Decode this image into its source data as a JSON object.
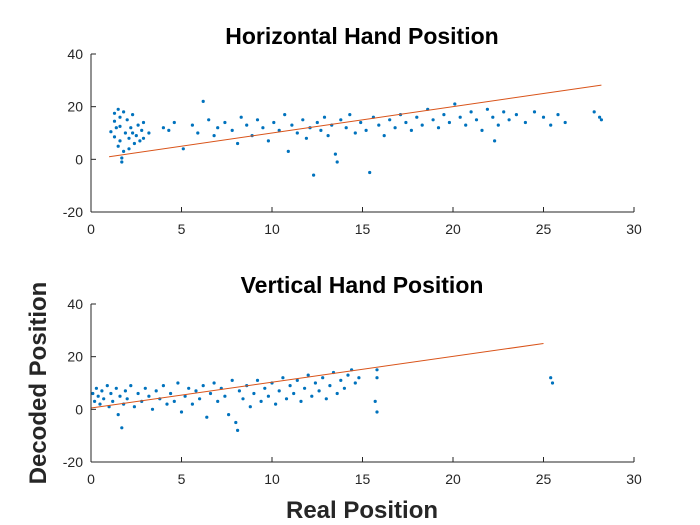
{
  "figure": {
    "xlabel": "Real Position",
    "ylabel": "Decoded Position",
    "colors": {
      "points": "#0072bd",
      "fit": "#d95319",
      "axis": "#262626"
    }
  },
  "chart_data": [
    {
      "type": "scatter",
      "title": "Horizontal Hand Position",
      "xlabel": "",
      "ylabel": "",
      "xlim": [
        0,
        30
      ],
      "ylim": [
        -20,
        40
      ],
      "xticks": [
        0,
        5,
        10,
        15,
        20,
        25,
        30
      ],
      "yticks": [
        -20,
        0,
        20,
        40
      ],
      "grid": false,
      "fit_line": {
        "x": [
          1,
          28.2
        ],
        "y": [
          1,
          28.2
        ]
      },
      "points": [
        [
          1.1,
          10.5
        ],
        [
          1.3,
          14.5
        ],
        [
          1.3,
          17.5
        ],
        [
          1.3,
          8.5
        ],
        [
          1.4,
          12
        ],
        [
          1.5,
          19
        ],
        [
          1.5,
          5
        ],
        [
          1.6,
          16
        ],
        [
          1.6,
          7
        ],
        [
          1.6,
          12.5
        ],
        [
          1.7,
          0.5
        ],
        [
          1.7,
          -1
        ],
        [
          1.8,
          18
        ],
        [
          1.8,
          3
        ],
        [
          1.9,
          10
        ],
        [
          2,
          15
        ],
        [
          2.1,
          8
        ],
        [
          2.1,
          4
        ],
        [
          2.2,
          12
        ],
        [
          2.3,
          17
        ],
        [
          2.3,
          10
        ],
        [
          2.4,
          6
        ],
        [
          2.5,
          9
        ],
        [
          2.6,
          13
        ],
        [
          2.7,
          7
        ],
        [
          2.8,
          11
        ],
        [
          2.9,
          14
        ],
        [
          2.9,
          8
        ],
        [
          3.2,
          10
        ],
        [
          4,
          12
        ],
        [
          4.3,
          11
        ],
        [
          4.6,
          14
        ],
        [
          5.1,
          4
        ],
        [
          5.6,
          13
        ],
        [
          5.9,
          10
        ],
        [
          6.2,
          22
        ],
        [
          6.5,
          15
        ],
        [
          6.8,
          9
        ],
        [
          7,
          12
        ],
        [
          7.4,
          14
        ],
        [
          7.8,
          11
        ],
        [
          8.1,
          6
        ],
        [
          8.3,
          16
        ],
        [
          8.6,
          13
        ],
        [
          8.9,
          9
        ],
        [
          9.2,
          15
        ],
        [
          9.5,
          12
        ],
        [
          9.8,
          7
        ],
        [
          10.1,
          14
        ],
        [
          10.4,
          11
        ],
        [
          10.7,
          17
        ],
        [
          10.9,
          3
        ],
        [
          11.1,
          13
        ],
        [
          11.4,
          10
        ],
        [
          11.7,
          15
        ],
        [
          11.9,
          8
        ],
        [
          12.1,
          12
        ],
        [
          12.3,
          -6
        ],
        [
          12.5,
          14
        ],
        [
          12.7,
          11
        ],
        [
          12.9,
          16
        ],
        [
          13.1,
          9
        ],
        [
          13.3,
          13
        ],
        [
          13.5,
          2
        ],
        [
          13.6,
          -1
        ],
        [
          13.8,
          15
        ],
        [
          14.1,
          12
        ],
        [
          14.3,
          17
        ],
        [
          14.6,
          10
        ],
        [
          14.9,
          14
        ],
        [
          15.2,
          11
        ],
        [
          15.4,
          -5
        ],
        [
          15.6,
          16
        ],
        [
          15.9,
          13
        ],
        [
          16.2,
          9
        ],
        [
          16.5,
          15
        ],
        [
          16.8,
          12
        ],
        [
          17.1,
          17
        ],
        [
          17.4,
          14
        ],
        [
          17.7,
          11
        ],
        [
          18,
          16
        ],
        [
          18.3,
          13
        ],
        [
          18.6,
          19
        ],
        [
          18.9,
          15
        ],
        [
          19.2,
          12
        ],
        [
          19.5,
          17
        ],
        [
          19.8,
          14
        ],
        [
          20.1,
          21
        ],
        [
          20.4,
          16
        ],
        [
          20.7,
          13
        ],
        [
          21,
          18
        ],
        [
          21.3,
          15
        ],
        [
          21.6,
          11
        ],
        [
          21.9,
          19
        ],
        [
          22.2,
          16
        ],
        [
          22.3,
          7
        ],
        [
          22.5,
          13
        ],
        [
          22.8,
          18
        ],
        [
          23.1,
          15
        ],
        [
          23.5,
          17
        ],
        [
          24,
          14
        ],
        [
          24.5,
          18
        ],
        [
          25,
          16
        ],
        [
          25.4,
          13
        ],
        [
          25.8,
          17
        ],
        [
          26.2,
          14
        ],
        [
          27.8,
          18
        ],
        [
          28.1,
          16
        ],
        [
          28.2,
          15
        ]
      ]
    },
    {
      "type": "scatter",
      "title": "Vertical Hand Position",
      "xlabel": "",
      "ylabel": "",
      "xlim": [
        0,
        30
      ],
      "ylim": [
        -20,
        40
      ],
      "xticks": [
        0,
        5,
        10,
        15,
        20,
        25,
        30
      ],
      "yticks": [
        -20,
        0,
        20,
        40
      ],
      "grid": false,
      "fit_line": {
        "x": [
          0,
          25
        ],
        "y": [
          0.5,
          25
        ]
      },
      "points": [
        [
          0.1,
          6
        ],
        [
          0.2,
          3
        ],
        [
          0.3,
          8
        ],
        [
          0.4,
          5
        ],
        [
          0.5,
          2
        ],
        [
          0.6,
          7
        ],
        [
          0.7,
          4
        ],
        [
          0.9,
          9
        ],
        [
          1,
          1
        ],
        [
          1.1,
          6
        ],
        [
          1.2,
          3
        ],
        [
          1.4,
          8
        ],
        [
          1.5,
          -2
        ],
        [
          1.6,
          5
        ],
        [
          1.7,
          -7
        ],
        [
          1.8,
          2
        ],
        [
          1.9,
          7
        ],
        [
          2,
          4
        ],
        [
          2.2,
          9
        ],
        [
          2.4,
          1
        ],
        [
          2.6,
          6
        ],
        [
          2.8,
          3
        ],
        [
          3,
          8
        ],
        [
          3.2,
          5
        ],
        [
          3.4,
          0
        ],
        [
          3.6,
          7
        ],
        [
          3.8,
          4
        ],
        [
          4,
          9
        ],
        [
          4.2,
          2
        ],
        [
          4.4,
          6
        ],
        [
          4.6,
          3
        ],
        [
          4.8,
          10
        ],
        [
          5,
          -1
        ],
        [
          5.2,
          5
        ],
        [
          5.4,
          8
        ],
        [
          5.6,
          2
        ],
        [
          5.8,
          7
        ],
        [
          6,
          4
        ],
        [
          6.2,
          9
        ],
        [
          6.4,
          -3
        ],
        [
          6.6,
          6
        ],
        [
          6.8,
          10
        ],
        [
          7,
          3
        ],
        [
          7.2,
          8
        ],
        [
          7.4,
          5
        ],
        [
          7.6,
          -2
        ],
        [
          7.8,
          11
        ],
        [
          8,
          -5
        ],
        [
          8.1,
          -8
        ],
        [
          8.2,
          7
        ],
        [
          8.4,
          4
        ],
        [
          8.6,
          9
        ],
        [
          8.8,
          1
        ],
        [
          9,
          6
        ],
        [
          9.2,
          11
        ],
        [
          9.4,
          3
        ],
        [
          9.6,
          8
        ],
        [
          9.8,
          5
        ],
        [
          10,
          10
        ],
        [
          10.2,
          2
        ],
        [
          10.4,
          7
        ],
        [
          10.6,
          12
        ],
        [
          10.8,
          4
        ],
        [
          11,
          9
        ],
        [
          11.2,
          6
        ],
        [
          11.4,
          11
        ],
        [
          11.6,
          3
        ],
        [
          11.8,
          8
        ],
        [
          12,
          13
        ],
        [
          12.2,
          5
        ],
        [
          12.4,
          10
        ],
        [
          12.6,
          7
        ],
        [
          12.8,
          12
        ],
        [
          13,
          4
        ],
        [
          13.2,
          9
        ],
        [
          13.4,
          14
        ],
        [
          13.6,
          6
        ],
        [
          13.8,
          11
        ],
        [
          14,
          8
        ],
        [
          14.2,
          13
        ],
        [
          14.4,
          15
        ],
        [
          14.6,
          10
        ],
        [
          14.8,
          12
        ],
        [
          15.8,
          15
        ],
        [
          15.8,
          12
        ],
        [
          15.7,
          3
        ],
        [
          15.8,
          -1
        ],
        [
          25.4,
          12
        ],
        [
          25.5,
          10
        ]
      ]
    }
  ]
}
